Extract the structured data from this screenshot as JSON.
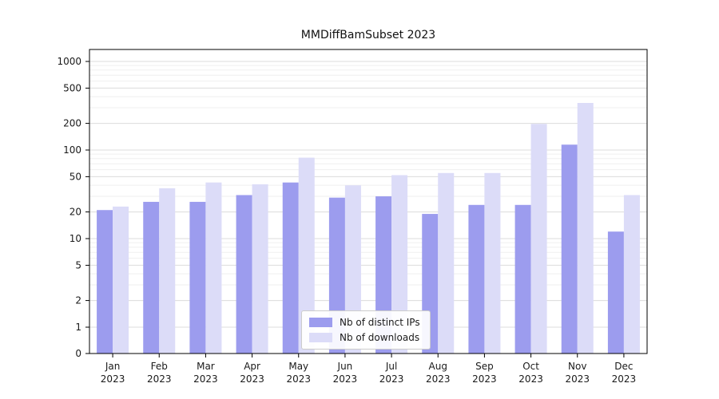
{
  "chart_data": {
    "type": "bar",
    "title": "MMDiffBamSubset 2023",
    "categories": [
      "Jan 2023",
      "Feb 2023",
      "Mar 2023",
      "Apr 2023",
      "May 2023",
      "Jun 2023",
      "Jul 2023",
      "Aug 2023",
      "Sep 2023",
      "Oct 2023",
      "Nov 2023",
      "Dec 2023"
    ],
    "series": [
      {
        "name": "Nb of distinct IPs",
        "color": "#9c9cee",
        "values": [
          21,
          26,
          26,
          31,
          43,
          29,
          30,
          19,
          24,
          24,
          115,
          12
        ]
      },
      {
        "name": "Nb of downloads",
        "color": "#dcdcf8",
        "values": [
          23,
          37,
          43,
          41,
          82,
          40,
          52,
          55,
          55,
          197,
          340,
          31
        ]
      }
    ],
    "yscale": "symlog",
    "yticks": [
      0,
      1,
      2,
      5,
      10,
      20,
      50,
      100,
      200,
      500,
      1000
    ],
    "ylim": [
      0,
      1000
    ],
    "xlabel": "",
    "ylabel": "",
    "grid": "horizontal",
    "legend_position": "lower center"
  }
}
